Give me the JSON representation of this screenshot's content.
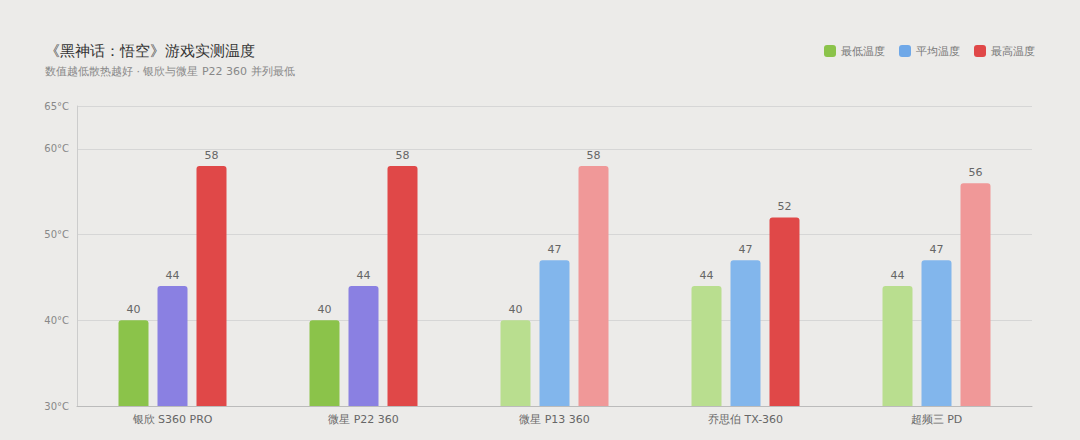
{
  "chart_data": {
    "type": "bar",
    "title": "《黑神话：悟空》游戏实测温度",
    "subtitle": "数值越低散热越好 · 银欣与微星 P22 360 并列最低",
    "categories": [
      "银欣 S360 PRO",
      "微星 P22 360",
      "微星 P13 360",
      "乔思伯 TX-360",
      "超频三 PD"
    ],
    "series": [
      {
        "name": "最低温度",
        "color": "#8bc34a",
        "colors": [
          "#8bc34a",
          "#8bc34a",
          "#b9de8f",
          "#b9de8f",
          "#b9de8f"
        ],
        "values": [
          40,
          40,
          40,
          44,
          44
        ]
      },
      {
        "name": "平均温度",
        "color": "#6fa8e8",
        "colors": [
          "#8a80e2",
          "#8a80e2",
          "#82b6ec",
          "#82b6ec",
          "#82b6ec"
        ],
        "values": [
          44,
          44,
          47,
          47,
          47
        ]
      },
      {
        "name": "最高温度",
        "color": "#e04848",
        "colors": [
          "#e04848",
          "#e04848",
          "#f09898",
          "#e04848",
          "#f09898"
        ],
        "values": [
          58,
          58,
          58,
          52,
          56
        ]
      }
    ],
    "ylim": [
      30,
      65
    ],
    "yticks": [
      {
        "value": 30,
        "label": "30°C"
      },
      {
        "value": 40,
        "label": "40°C"
      },
      {
        "value": 50,
        "label": "50°C"
      },
      {
        "value": 60,
        "label": "60°C"
      },
      {
        "value": 65,
        "label": "65°C"
      }
    ],
    "grid": true,
    "legend": "top-right",
    "data_labels": true
  }
}
